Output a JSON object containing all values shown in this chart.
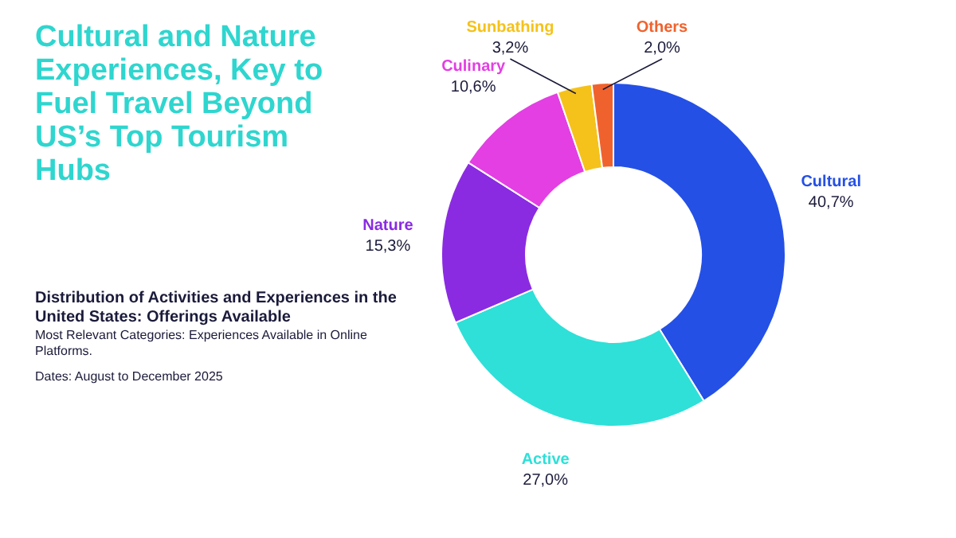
{
  "chart_data": {
    "type": "donut",
    "title": "Cultural and Nature Experiences, Key to Fuel Travel Beyond US’s Top Tourism Hubs",
    "subtitle": "Distribution of Activities and Experiences in the United States: Offerings Available",
    "annotations": [
      "Most Relevant Categories: Experiences Available in Online Platforms.",
      "Dates: August to December 2025"
    ],
    "categories": [
      "Cultural",
      "Active",
      "Nature",
      "Culinary",
      "Sunbathing",
      "Others"
    ],
    "values": [
      40.7,
      27.0,
      15.3,
      10.6,
      3.2,
      2.0
    ],
    "value_labels": [
      "40,7%",
      "27,0%",
      "15,3%",
      "10,6%",
      "3,2%",
      "2,0%"
    ],
    "colors": [
      "#2450e6",
      "#2ee0d8",
      "#8a2be2",
      "#e33fe3",
      "#f5c21b",
      "#f0622d"
    ]
  }
}
